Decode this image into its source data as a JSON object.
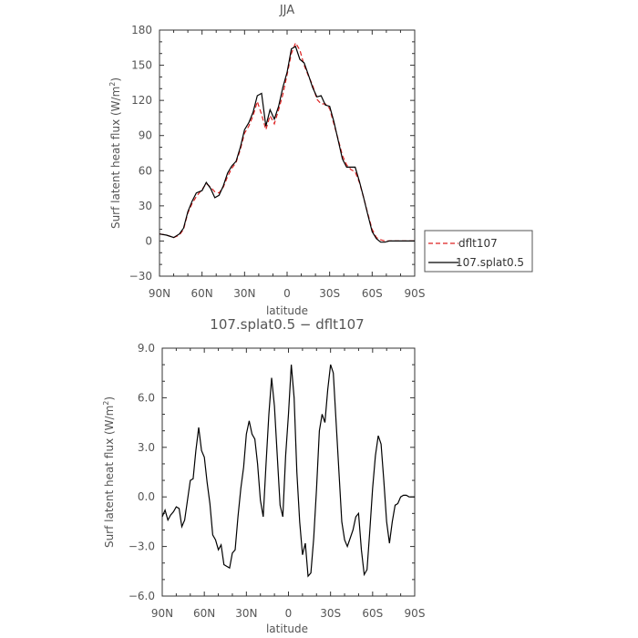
{
  "chart_data": [
    {
      "type": "line",
      "title": "JJA",
      "xlabel": "latitude",
      "ylabel": "Surf latent heat flux (W/m",
      "ylabel_sup": "2",
      "ylabel_end": ")",
      "ylim": [
        -30,
        180
      ],
      "xlim": [
        90,
        -90
      ],
      "yticks": [
        -30,
        0,
        30,
        60,
        90,
        120,
        150,
        180
      ],
      "ytick_labels": [
        "−30",
        "0",
        "30",
        "60",
        "90",
        "120",
        "150",
        "180"
      ],
      "xticks": [
        90,
        60,
        30,
        0,
        -30,
        -60,
        -90
      ],
      "xtick_labels": [
        "90N",
        "60N",
        "30N",
        "0",
        "30S",
        "60S",
        "90S"
      ],
      "legend": "right",
      "x": [
        90,
        85,
        80,
        76,
        73,
        70,
        67,
        64,
        60,
        57,
        54,
        51,
        48,
        45,
        42,
        39,
        36,
        33,
        30,
        27,
        24,
        21,
        18,
        15,
        12,
        9,
        6,
        3,
        0,
        -3,
        -6,
        -9,
        -12,
        -15,
        -18,
        -21,
        -24,
        -27,
        -30,
        -33,
        -36,
        -39,
        -42,
        -45,
        -48,
        -51,
        -54,
        -57,
        -60,
        -63,
        -66,
        -69,
        -72,
        -75,
        -78,
        -81,
        -84,
        -87,
        -90
      ],
      "series": [
        {
          "name": "dflt107",
          "color": "#dd2222",
          "dash": true,
          "values": [
            6,
            5,
            3,
            5,
            10,
            24,
            32,
            38,
            44,
            49,
            46,
            42,
            41,
            46,
            55,
            62,
            67,
            78,
            92,
            98,
            107,
            119,
            108,
            95,
            107,
            100,
            112,
            125,
            142,
            160,
            169,
            163,
            150,
            141,
            133,
            121,
            117,
            117,
            113,
            100,
            87,
            73,
            65,
            61,
            59,
            50,
            37,
            23,
            10,
            3,
            1,
            0,
            0,
            0,
            0,
            0,
            0,
            0,
            0
          ]
        },
        {
          "name": "107.splat0.5",
          "color": "#000000",
          "dash": false,
          "values": [
            6,
            5,
            3,
            6,
            11,
            25,
            34,
            41,
            43,
            50,
            45,
            37,
            39,
            47,
            58,
            64,
            68,
            80,
            95,
            101,
            110,
            124,
            126,
            98,
            112,
            104,
            115,
            131,
            144,
            164,
            166,
            155,
            152,
            142,
            131,
            123,
            124,
            116,
            115,
            102,
            86,
            70,
            63,
            63,
            63,
            51,
            37,
            22,
            8,
            2,
            -1,
            -1,
            0,
            0,
            0,
            0,
            0,
            0,
            0
          ]
        }
      ]
    },
    {
      "type": "line",
      "title": "107.splat0.5 − dflt107",
      "xlabel": "latitude",
      "ylabel": "Surf latent heat flux (W/m",
      "ylabel_sup": "2",
      "ylabel_end": ")",
      "ylim": [
        -6,
        9
      ],
      "xlim": [
        90,
        -90
      ],
      "yticks": [
        -6,
        -3,
        0,
        3,
        6,
        9
      ],
      "ytick_labels": [
        "−6.0",
        "−3.0",
        "0.0",
        "3.0",
        "6.0",
        "9.0"
      ],
      "xticks": [
        90,
        60,
        30,
        0,
        -30,
        -60,
        -90
      ],
      "xtick_labels": [
        "90N",
        "60N",
        "30N",
        "0",
        "30S",
        "60S",
        "90S"
      ],
      "x": [
        90,
        88,
        86,
        84,
        82,
        80,
        78,
        76,
        74,
        72,
        70,
        68,
        66,
        64,
        62,
        60,
        58,
        56,
        54,
        52,
        50,
        48,
        46,
        44,
        42,
        40,
        38,
        36,
        34,
        32,
        30,
        28,
        26,
        24,
        22,
        20,
        18,
        16,
        14,
        12,
        10,
        8,
        6,
        4,
        2,
        0,
        -2,
        -4,
        -6,
        -8,
        -10,
        -12,
        -14,
        -16,
        -18,
        -20,
        -22,
        -24,
        -26,
        -28,
        -30,
        -32,
        -34,
        -36,
        -38,
        -40,
        -42,
        -44,
        -46,
        -48,
        -50,
        -52,
        -54,
        -56,
        -58,
        -60,
        -62,
        -64,
        -66,
        -68,
        -70,
        -72,
        -74,
        -76,
        -78,
        -80,
        -82,
        -84,
        -86,
        -88,
        -90
      ],
      "series": [
        {
          "name": "",
          "color": "#000000",
          "dash": false,
          "values": [
            -1.2,
            -0.8,
            -1.4,
            -1.1,
            -0.9,
            -0.6,
            -0.7,
            -1.8,
            -1.4,
            -0.2,
            1.0,
            1.1,
            2.8,
            4.2,
            2.8,
            2.4,
            0.9,
            -0.4,
            -2.3,
            -2.6,
            -3.2,
            -2.9,
            -4.1,
            -4.2,
            -4.3,
            -3.4,
            -3.2,
            -1.2,
            0.5,
            1.8,
            3.8,
            4.6,
            3.8,
            3.5,
            2.0,
            -0.2,
            -1.2,
            2.0,
            5.0,
            7.2,
            5.5,
            2.5,
            -0.5,
            -1.2,
            2.5,
            5.0,
            8.0,
            6.0,
            1.5,
            -1.5,
            -3.5,
            -2.8,
            -4.8,
            -4.6,
            -2.5,
            0.5,
            4.0,
            5.0,
            4.5,
            6.5,
            8.0,
            7.5,
            4.5,
            1.5,
            -1.5,
            -2.6,
            -3.0,
            -2.5,
            -2.0,
            -1.2,
            -1.0,
            -3.2,
            -4.7,
            -4.4,
            -2.0,
            0.5,
            2.5,
            3.7,
            3.2,
            1.0,
            -1.5,
            -2.8,
            -1.5,
            -0.5,
            -0.4,
            0.0,
            0.1,
            0.1,
            0.0,
            0.0,
            0.0
          ]
        }
      ]
    }
  ]
}
